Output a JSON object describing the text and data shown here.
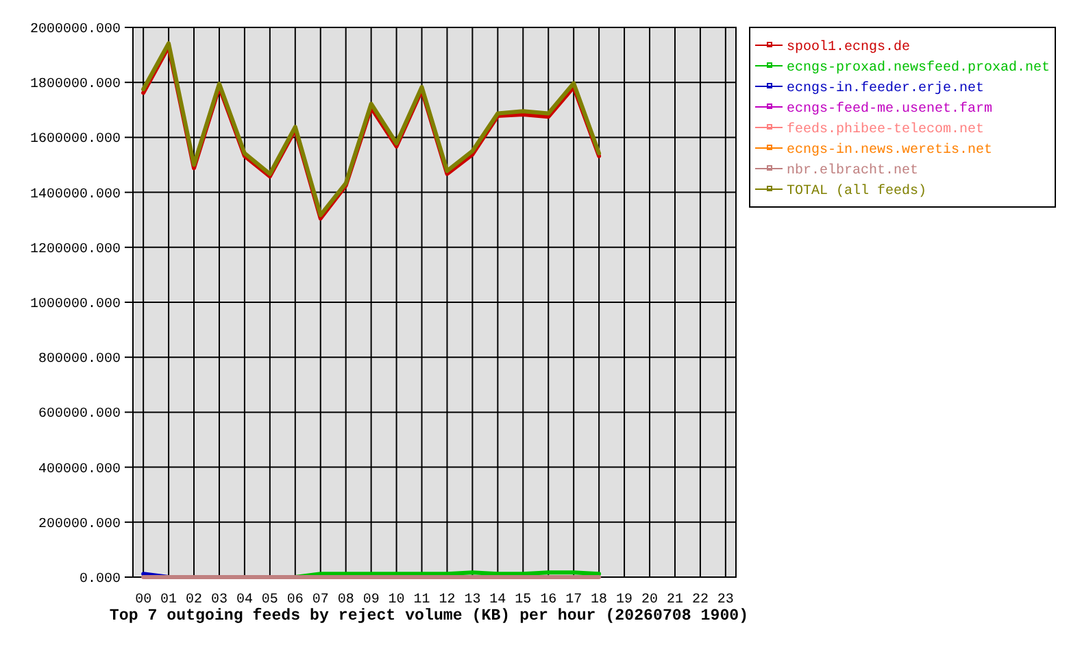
{
  "chart_data": {
    "type": "line",
    "title": "Top 7 outgoing feeds by reject volume (KB) per hour (20260708 1900)",
    "categories": [
      "00",
      "01",
      "02",
      "03",
      "04",
      "05",
      "06",
      "07",
      "08",
      "09",
      "10",
      "11",
      "12",
      "13",
      "14",
      "15",
      "16",
      "17",
      "18",
      "19",
      "20",
      "21",
      "22",
      "23"
    ],
    "series": [
      {
        "name": "spool1.ecngs.de",
        "color": "#cc0000",
        "values": [
          1762000,
          1930000,
          1488000,
          1783000,
          1532000,
          1458000,
          1628000,
          1305000,
          1425000,
          1708000,
          1567000,
          1772000,
          1467000,
          1538000,
          1678000,
          1683000,
          1675000,
          1783000,
          1532000,
          null,
          null,
          null,
          null,
          null
        ]
      },
      {
        "name": "ecngs-proxad.newsfeed.proxad.net",
        "color": "#00c000",
        "values": [
          null,
          null,
          null,
          null,
          null,
          null,
          0,
          12000,
          12000,
          12000,
          12000,
          12000,
          12000,
          17000,
          12000,
          12000,
          17000,
          17000,
          12000,
          null,
          null,
          null,
          null,
          null
        ]
      },
      {
        "name": "ecngs-in.feeder.erje.net",
        "color": "#0000c0",
        "values": [
          12000,
          0,
          null,
          null,
          null,
          null,
          null,
          null,
          null,
          null,
          null,
          null,
          null,
          null,
          null,
          null,
          null,
          null,
          null,
          null,
          null,
          null,
          null,
          null
        ]
      },
      {
        "name": "ecngs-feed-me.usenet.farm",
        "color": "#c000c0",
        "values": [
          null,
          null,
          null,
          null,
          null,
          null,
          null,
          null,
          null,
          null,
          null,
          null,
          null,
          null,
          null,
          null,
          null,
          null,
          null,
          null,
          null,
          null,
          null,
          null
        ]
      },
      {
        "name": "feeds.phibee-telecom.net",
        "color": "#ff8080",
        "values": [
          null,
          null,
          null,
          null,
          null,
          null,
          null,
          null,
          null,
          null,
          null,
          null,
          null,
          null,
          null,
          null,
          null,
          null,
          null,
          null,
          null,
          null,
          null,
          null
        ]
      },
      {
        "name": "ecngs-in.news.weretis.net",
        "color": "#ff8000",
        "values": [
          null,
          null,
          null,
          null,
          null,
          null,
          null,
          null,
          null,
          null,
          null,
          null,
          null,
          null,
          null,
          null,
          null,
          null,
          null,
          null,
          null,
          null,
          null,
          null
        ]
      },
      {
        "name": "nbr.elbracht.net",
        "color": "#c08080",
        "values": [
          0,
          0,
          0,
          0,
          0,
          0,
          0,
          0,
          0,
          0,
          0,
          0,
          0,
          0,
          0,
          0,
          0,
          0,
          0,
          null,
          null,
          null,
          null,
          null
        ]
      },
      {
        "name": "TOTAL (all feeds)",
        "color": "#808000",
        "values": [
          1775000,
          1942000,
          1500000,
          1795000,
          1542000,
          1467000,
          1638000,
          1317000,
          1433000,
          1722000,
          1578000,
          1783000,
          1478000,
          1550000,
          1687000,
          1695000,
          1687000,
          1797000,
          1542000,
          null,
          null,
          null,
          null,
          null
        ]
      }
    ],
    "ylim": [
      0,
      2000000
    ],
    "yticks": [
      {
        "value": 0,
        "label": "0.000"
      },
      {
        "value": 200000,
        "label": "200000.000"
      },
      {
        "value": 400000,
        "label": "400000.000"
      },
      {
        "value": 600000,
        "label": "600000.000"
      },
      {
        "value": 800000,
        "label": "800000.000"
      },
      {
        "value": 1000000,
        "label": "1000000.000"
      },
      {
        "value": 1200000,
        "label": "1200000.000"
      },
      {
        "value": 1400000,
        "label": "1400000.000"
      },
      {
        "value": 1600000,
        "label": "1600000.000"
      },
      {
        "value": 1800000,
        "label": "1800000.000"
      },
      {
        "value": 2000000,
        "label": "2000000.000"
      }
    ],
    "grid": true,
    "legend": "right"
  }
}
